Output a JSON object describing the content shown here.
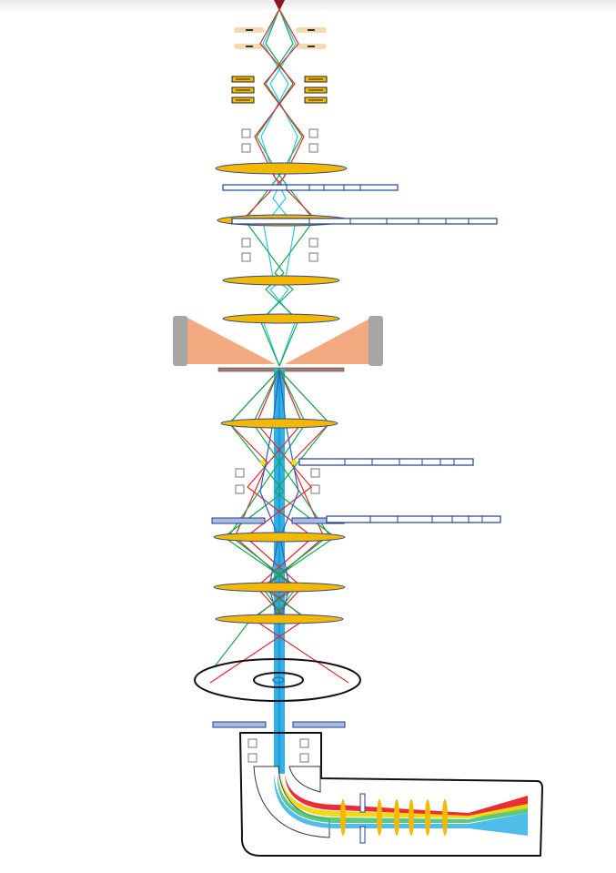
{
  "diagram": {
    "kind": "electron-microscope-column-schematic",
    "colors": {
      "lens_fill": "#f5b800",
      "lens_stroke": "#2f4b8a",
      "aperture_fill": "#a9bce0",
      "aperture_stroke": "#1f3f8f",
      "ray_red": "#e8242a",
      "ray_green": "#17a84a",
      "ray_cyan": "#2ec4e8",
      "ray_blue": "#2a5cc8",
      "beam": "#2fb1e6",
      "objective_pole": "#f4aa80",
      "pole_cap": "#a6a6a6",
      "specimen": "#9b7b70",
      "stigmator_fill": "#f0dcae",
      "source_tip": "#8b1a1a"
    },
    "text": []
  }
}
